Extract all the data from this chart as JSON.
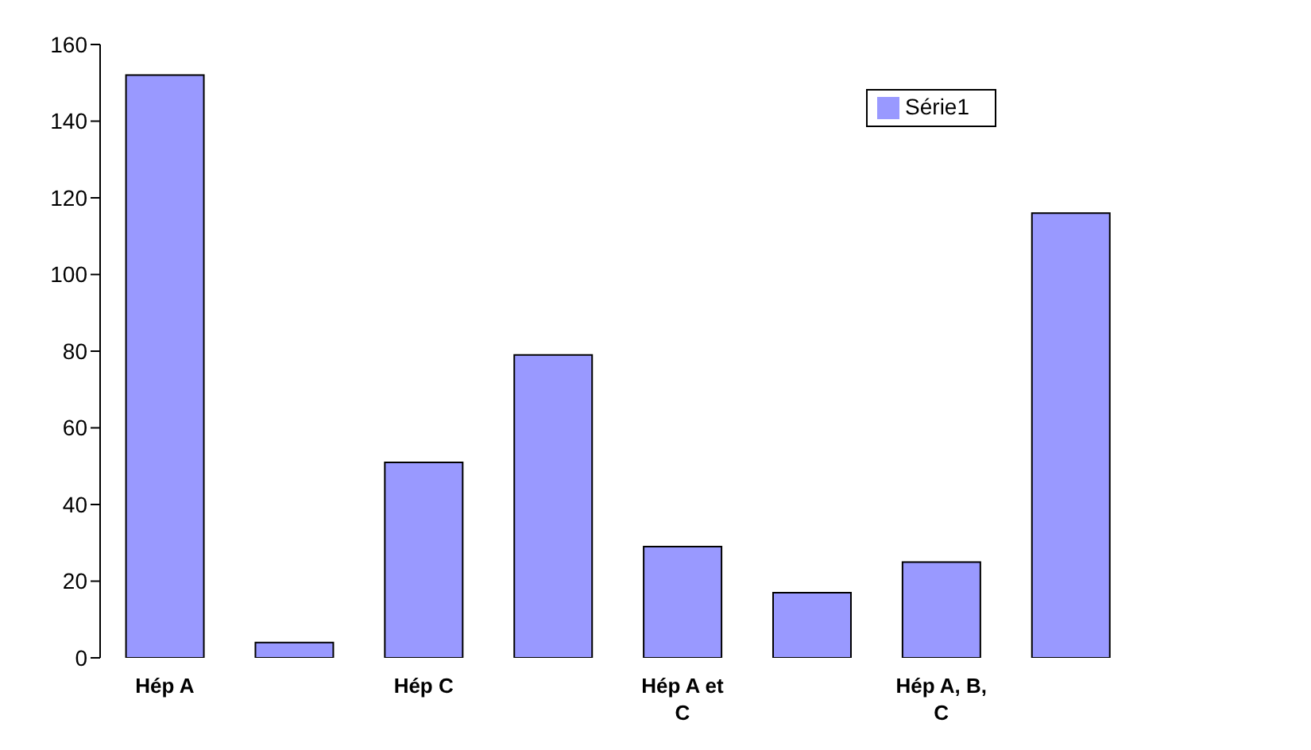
{
  "chart_data": {
    "type": "bar",
    "categories": [
      "Hép A",
      null,
      "Hép C",
      null,
      "Hép A et C",
      null,
      "Hép A, B, C",
      null
    ],
    "series": [
      {
        "name": "Série1",
        "color": "#9999ff",
        "values": [
          152,
          4,
          51,
          79,
          29,
          17,
          25,
          116
        ]
      }
    ],
    "ylim": [
      0,
      160
    ],
    "yticks": [
      0,
      20,
      40,
      60,
      80,
      100,
      120,
      140,
      160
    ],
    "grid": false,
    "legend": "top right"
  }
}
